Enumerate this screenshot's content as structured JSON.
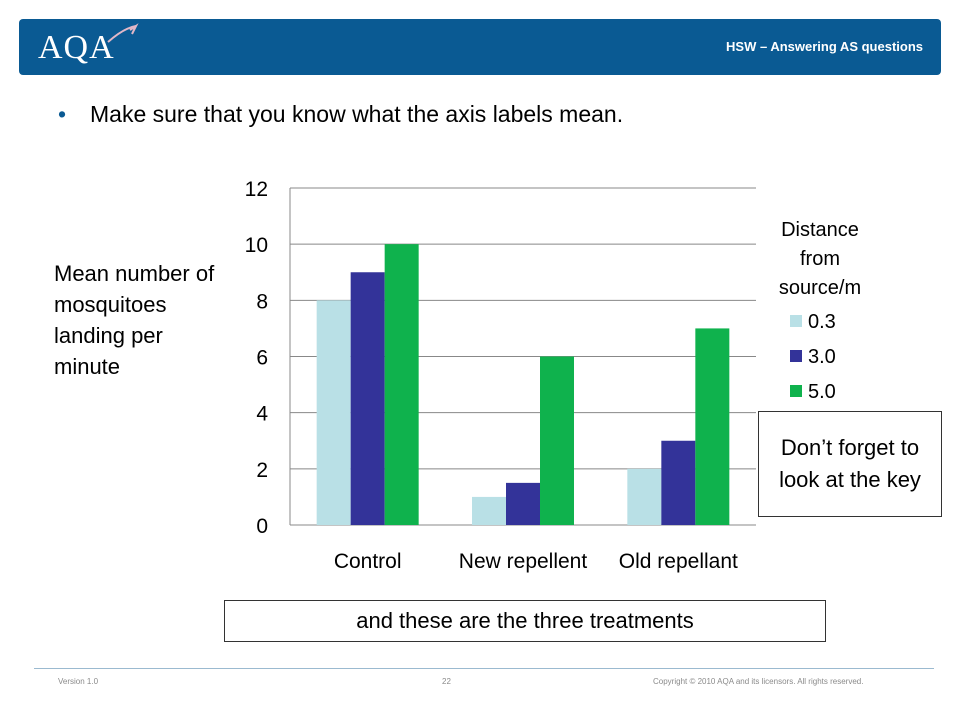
{
  "header": {
    "title": "HSW – Answering AS questions",
    "logo_text": "AQA"
  },
  "bullet": {
    "marker": "•",
    "text": "Make sure that you know what the axis labels mean."
  },
  "y_label": "Mean number of mosquitoes landing per minute",
  "chart_data": {
    "type": "bar",
    "categories": [
      "Control",
      "New repellent",
      "Old repellant"
    ],
    "legend_title": "Distance from source/m",
    "series": [
      {
        "name": "0.3",
        "color": "#b9e0e6",
        "values": [
          8,
          1,
          2
        ]
      },
      {
        "name": "3.0",
        "color": "#333399",
        "values": [
          9,
          1.5,
          3
        ]
      },
      {
        "name": "5.0",
        "color": "#0fb24d",
        "values": [
          10,
          6,
          7
        ]
      }
    ],
    "ylim": [
      0,
      12
    ],
    "yticks": [
      "0",
      "2",
      "4",
      "6",
      "8",
      "10",
      "12"
    ],
    "grid": true,
    "legend_position": "right"
  },
  "notes": {
    "key": "Don’t forget to look at the key",
    "treatments": "and these are the three treatments"
  },
  "footer": {
    "version": "Version 1.0",
    "page": "22",
    "copyright": "Copyright © 2010 AQA and its licensors. All rights reserved."
  }
}
